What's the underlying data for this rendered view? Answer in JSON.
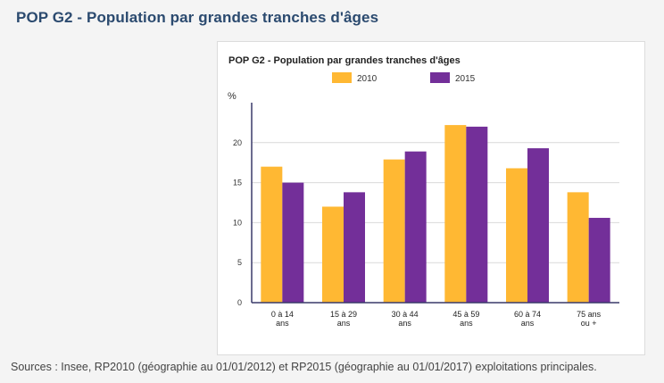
{
  "page": {
    "title": "POP G2 - Population par grandes tranches d'âges",
    "sources": "Sources : Insee, RP2010 (géographie au 01/01/2012) et RP2015 (géographie au 01/01/2017) exploitations principales."
  },
  "colors": {
    "series_2010": "#ffb833",
    "series_2015": "#732f99",
    "grid": "#d9d9d9",
    "axis": "#3a3a6a"
  },
  "chart_data": {
    "type": "bar",
    "title": "POP G2 - Population par grandes tranches d'âges",
    "ylabel": "%",
    "xlabel": "",
    "ylim": [
      0,
      25
    ],
    "yticks": [
      0,
      5,
      10,
      15,
      20
    ],
    "grid": true,
    "legend_position": "top",
    "categories": [
      [
        "0 à 14",
        "ans"
      ],
      [
        "15 à 29",
        "ans"
      ],
      [
        "30 à 44",
        "ans"
      ],
      [
        "45 à 59",
        "ans"
      ],
      [
        "60 à 74",
        "ans"
      ],
      [
        "75 ans",
        "ou +"
      ]
    ],
    "series": [
      {
        "name": "2010",
        "values": [
          17.0,
          12.0,
          17.9,
          22.2,
          16.8,
          13.8
        ]
      },
      {
        "name": "2015",
        "values": [
          15.0,
          13.8,
          18.9,
          22.0,
          19.3,
          10.6
        ]
      }
    ]
  }
}
